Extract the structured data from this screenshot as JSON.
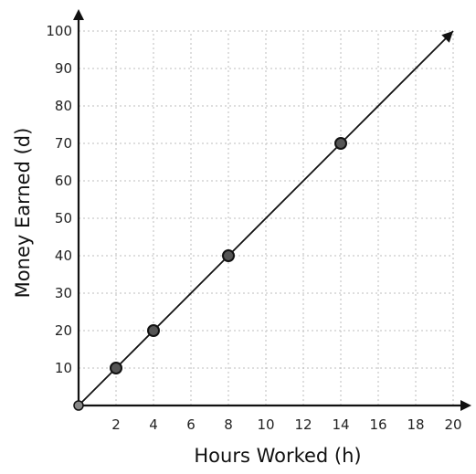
{
  "chart_data": {
    "type": "line",
    "title": "",
    "xlabel": "Hours Worked (h)",
    "ylabel": "Money Earned (d)",
    "xlim": [
      0,
      20
    ],
    "ylim": [
      0,
      100
    ],
    "grid": true,
    "x_ticks": [
      "2",
      "4",
      "6",
      "8",
      "10",
      "12",
      "14",
      "16",
      "18",
      "20"
    ],
    "y_ticks": [
      "10",
      "20",
      "30",
      "40",
      "50",
      "60",
      "70",
      "80",
      "90",
      "100"
    ],
    "series": [
      {
        "x": [
          0,
          2,
          4,
          8,
          14
        ],
        "y": [
          0,
          10,
          20,
          40,
          70
        ]
      }
    ],
    "line_extends_to": [
      20,
      100
    ],
    "colors": {
      "line": "#111111",
      "grid": "#bdbdbd"
    }
  }
}
